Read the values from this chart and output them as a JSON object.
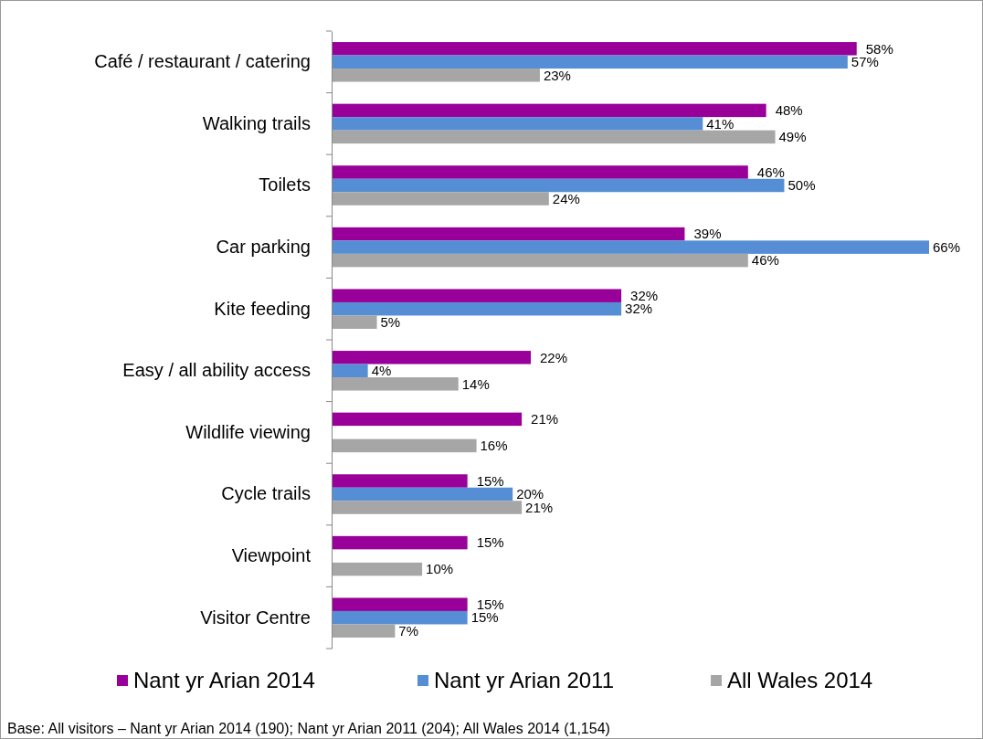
{
  "chart_data": {
    "type": "bar",
    "orientation": "horizontal",
    "categories": [
      "Café / restaurant / catering",
      "Walking trails",
      "Toilets",
      "Car parking",
      "Kite feeding",
      "Easy / all ability access",
      "Wildlife viewing",
      "Cycle trails",
      "Viewpoint",
      "Visitor Centre"
    ],
    "series": [
      {
        "name": "Nant yr Arian 2014",
        "color": "#990099",
        "values": [
          58,
          48,
          46,
          39,
          32,
          22,
          21,
          15,
          15,
          15
        ],
        "value_labels": [
          "58%",
          "48%",
          "46%",
          "39%",
          "32%",
          "22%",
          "21%",
          "15%",
          "15%",
          "15%"
        ]
      },
      {
        "name": "Nant yr Arian 2011",
        "color": "#558ed5",
        "values": [
          57,
          41,
          50,
          66,
          32,
          4,
          null,
          20,
          null,
          15
        ],
        "value_labels": [
          "57%",
          "41%",
          "50%",
          "66%",
          "32%",
          "4%",
          null,
          "20%",
          null,
          "15%"
        ]
      },
      {
        "name": "All Wales 2014",
        "color": "#a6a6a6",
        "values": [
          23,
          49,
          24,
          46,
          5,
          14,
          16,
          21,
          10,
          7
        ],
        "value_labels": [
          "23%",
          "49%",
          "24%",
          "46%",
          "5%",
          "14%",
          "16%",
          "21%",
          "10%",
          "7%"
        ]
      }
    ],
    "legend": "bottom",
    "tick_labels": "y",
    "annotations": [
      "Base: All visitors – Nant yr Arian 2014 (190); Nant yr Arian 2011 (204); All Wales 2014 (1,154)"
    ]
  }
}
